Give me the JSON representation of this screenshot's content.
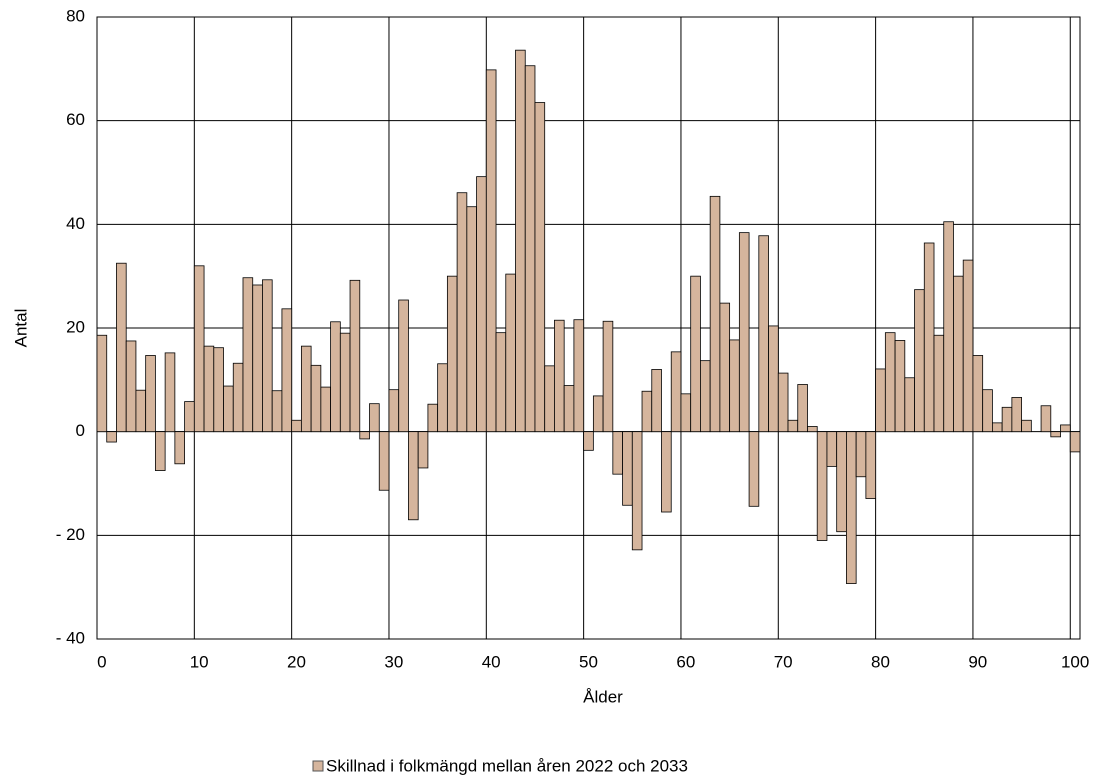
{
  "chart_data": {
    "type": "bar",
    "x_label": "Ålder",
    "y_label": "Antal",
    "categories": [
      0,
      null,
      null,
      null,
      null,
      null,
      null,
      null,
      null,
      null,
      10,
      null,
      null,
      null,
      null,
      null,
      null,
      null,
      null,
      null,
      20,
      null,
      null,
      null,
      null,
      null,
      null,
      null,
      null,
      null,
      30,
      null,
      null,
      null,
      null,
      null,
      null,
      null,
      null,
      null,
      40,
      null,
      null,
      null,
      null,
      null,
      null,
      null,
      null,
      null,
      50,
      null,
      null,
      null,
      null,
      null,
      null,
      null,
      null,
      null,
      60,
      null,
      null,
      null,
      null,
      null,
      null,
      null,
      null,
      null,
      70,
      null,
      null,
      null,
      null,
      null,
      null,
      null,
      null,
      null,
      80,
      null,
      null,
      null,
      null,
      null,
      null,
      null,
      null,
      null,
      90,
      null,
      null,
      null,
      null,
      null,
      null,
      null,
      null,
      null,
      100
    ],
    "series": [
      {
        "name": "Skillnad i folkmängd mellan åren 2022 och 2033",
        "color": "#d5b59d",
        "values": [
          18.6,
          -2,
          32.5,
          17.5,
          8,
          14.7,
          -7.5,
          15.2,
          -6.2,
          5.8,
          32,
          16.5,
          16.2,
          8.8,
          13.2,
          29.7,
          28.3,
          29.3,
          7.9,
          23.7,
          2.2,
          16.5,
          12.8,
          8.6,
          21.2,
          19,
          29.2,
          -1.4,
          5.4,
          -11.3,
          8.1,
          25.4,
          -17,
          -7,
          5.3,
          13.1,
          30,
          46.1,
          43.4,
          49.2,
          69.8,
          19.1,
          30.4,
          73.6,
          70.6,
          63.5,
          12.7,
          21.5,
          8.9,
          21.6,
          -3.6,
          6.9,
          21.3,
          -8.2,
          -14.2,
          -22.8,
          7.8,
          12,
          -15.5,
          15.4,
          7.3,
          30,
          13.7,
          45.4,
          24.8,
          17.7,
          38.4,
          -14.4,
          37.8,
          20.4,
          11.3,
          2.2,
          9.1,
          1,
          -21,
          -6.7,
          -19.3,
          -29.3,
          -8.7,
          -12.9,
          12.1,
          19.1,
          17.6,
          10.4,
          27.4,
          36.4,
          18.6,
          40.5,
          30,
          33.1,
          14.7,
          8.1,
          1.7,
          4.7,
          6.6,
          2.2,
          0,
          5,
          -1,
          1.3,
          -3.9
        ]
      }
    ],
    "ylim": [
      -40,
      80
    ],
    "yticks": [
      {
        "value": -40,
        "label": "- 40"
      },
      {
        "value": -20,
        "label": "- 20"
      },
      0,
      20,
      40,
      60,
      80
    ],
    "grid": true
  }
}
